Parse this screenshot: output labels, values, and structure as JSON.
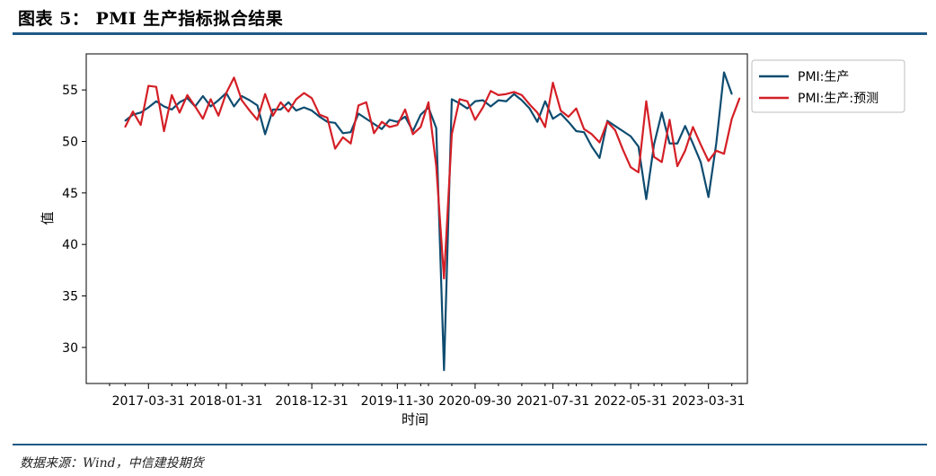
{
  "figure": {
    "title": "图表 5：  PMI 生产指标拟合结果",
    "source": "数据来源：Wind，中信建投期货"
  },
  "chart_data": {
    "type": "line",
    "xlabel": "时间",
    "ylabel": "值",
    "ylim": [
      26.5,
      58.5
    ],
    "yticks": [
      30,
      35,
      40,
      45,
      50,
      55
    ],
    "x_tick_labels": [
      "2017-03-31",
      "2018-01-31",
      "2018-12-31",
      "2019-11-30",
      "2020-09-30",
      "2021-07-31",
      "2022-05-31",
      "2023-03-31"
    ],
    "x_tick_months": [
      3,
      13,
      24,
      35,
      45,
      55,
      65,
      75
    ],
    "x_range_months": [
      -5,
      80
    ],
    "start_month": "2016-11",
    "legend_position": "upper right",
    "series": [
      {
        "name": "PMI:生产",
        "color": "#0e4c70",
        "values": [
          52.0,
          52.6,
          52.8,
          53.3,
          53.9,
          53.4,
          53.1,
          53.8,
          54.2,
          53.4,
          54.4,
          53.4,
          54.0,
          54.7,
          53.4,
          54.4,
          54.0,
          53.5,
          50.7,
          53.1,
          53.1,
          53.8,
          53.0,
          53.3,
          53.0,
          52.4,
          51.9,
          51.8,
          50.8,
          50.9,
          52.7,
          52.2,
          51.7,
          51.2,
          52.1,
          51.9,
          52.4,
          51.0,
          52.6,
          53.3,
          51.3,
          27.8,
          54.1,
          53.7,
          53.2,
          53.9,
          54.0,
          53.4,
          54.0,
          53.9,
          54.6,
          54.0,
          53.2,
          51.9,
          53.9,
          52.2,
          52.7,
          51.9,
          51.0,
          50.9,
          49.5,
          48.4,
          52.0,
          51.5,
          51.0,
          50.5,
          49.5,
          44.4,
          49.7,
          52.8,
          49.8,
          49.8,
          51.5,
          49.8,
          48.0,
          44.6,
          49.8,
          56.7,
          54.6
        ]
      },
      {
        "name": "PMI:生产:预测",
        "color": "#d41f26",
        "values": [
          51.4,
          52.9,
          51.6,
          55.4,
          55.3,
          51.0,
          54.5,
          52.8,
          54.5,
          53.4,
          52.2,
          54.1,
          52.5,
          54.7,
          56.2,
          54.0,
          53.0,
          52.1,
          54.6,
          52.5,
          53.8,
          52.9,
          54.1,
          54.7,
          54.2,
          52.6,
          52.3,
          49.3,
          50.4,
          49.8,
          53.5,
          53.8,
          50.8,
          51.9,
          51.4,
          51.6,
          53.1,
          50.7,
          51.4,
          53.8,
          47.6,
          36.7,
          50.7,
          54.1,
          53.9,
          52.1,
          53.3,
          54.9,
          54.5,
          54.6,
          54.8,
          54.5,
          53.6,
          52.8,
          51.4,
          55.7,
          53.0,
          52.4,
          53.2,
          51.2,
          50.7,
          49.9,
          51.9,
          51.1,
          49.2,
          47.5,
          47.0,
          53.9,
          48.5,
          48.0,
          52.1,
          47.6,
          49.1,
          51.4,
          49.7,
          48.1,
          49.1,
          48.8,
          52.2,
          54.2
        ]
      }
    ]
  }
}
